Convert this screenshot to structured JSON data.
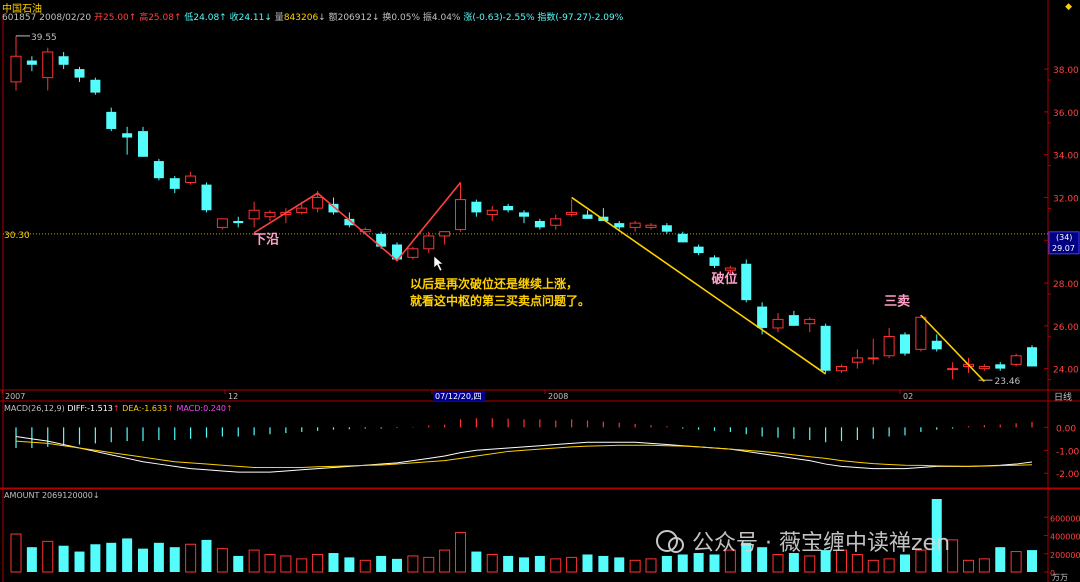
{
  "header": {
    "title": "中国石油",
    "code": "601857",
    "date": "2008/02/20",
    "open_label": "开",
    "open": "25.00",
    "high_label": "高",
    "high": "25.08",
    "low_label": "低",
    "low": "24.08",
    "close_label": "收",
    "close": "24.11",
    "volume_label": "量",
    "volume": "843206",
    "amount_label": "额",
    "amount": "206912",
    "turnover_label": "换",
    "turnover": "0.05%",
    "amplitude_label": "振",
    "amplitude": "4.04%",
    "change_label": "涨",
    "change": "(-0.63)-2.55%",
    "index_label": "指数",
    "index": "(-97.27)-2.09%"
  },
  "price_axis": {
    "ticks": [
      "38.00",
      "36.00",
      "34.00",
      "32.00",
      "30.00",
      "28.00",
      "26.00",
      "24.00"
    ],
    "ref_left": "30.30",
    "tag_top": "(34)",
    "tag_bottom": "29.07",
    "max_label": "39.55",
    "min_label": "23.46"
  },
  "date_axis": {
    "labels": [
      "2007",
      "12",
      "07/12/20,四",
      "2008",
      "02"
    ],
    "period": "日线"
  },
  "annotations": {
    "lower_edge": "下沿",
    "break": "破位",
    "third_sell": "三卖",
    "note_line1": "以后是再次破位还是继续上涨，",
    "note_line2": "就看这中枢的第三买卖点问题了。"
  },
  "macd": {
    "label": "MACD(26,12,9)",
    "diff_label": "DIFF:",
    "diff": "-1.513",
    "dea_label": "DEA:",
    "dea": "-1.633",
    "macd_label": "MACD:",
    "macd_value": "0.240",
    "ticks": [
      "0.00",
      "-1.00",
      "-2.00"
    ]
  },
  "amount_panel": {
    "label": "AMOUNT",
    "value": "2069120000",
    "ticks": [
      "600000",
      "400000",
      "200000",
      "0"
    ],
    "unit": "万万"
  },
  "watermark": "公众号 · 薇宝缠中读禅zen",
  "colors": {
    "up": "#ff3232",
    "down": "#54fcfc",
    "axis": "#b00000",
    "diff_line": "#ffffff",
    "dea_line": "#ffd000",
    "annotation_red": "#ff4040",
    "annotation_yellow": "#ffd000",
    "label_pink": "#ffa0c8"
  },
  "chart_data": {
    "type": "candlestick",
    "ylim": [
      23.0,
      40.2
    ],
    "candles": [
      {
        "o": 37.4,
        "h": 39.55,
        "l": 37.0,
        "c": 38.6
      },
      {
        "o": 38.4,
        "h": 38.6,
        "l": 37.9,
        "c": 38.2
      },
      {
        "o": 37.6,
        "h": 39.0,
        "l": 37.0,
        "c": 38.8
      },
      {
        "o": 38.6,
        "h": 38.8,
        "l": 38.0,
        "c": 38.2
      },
      {
        "o": 38.0,
        "h": 38.1,
        "l": 37.4,
        "c": 37.6
      },
      {
        "o": 37.5,
        "h": 37.6,
        "l": 36.8,
        "c": 36.9
      },
      {
        "o": 36.0,
        "h": 36.2,
        "l": 35.1,
        "c": 35.2
      },
      {
        "o": 35.0,
        "h": 35.3,
        "l": 34.0,
        "c": 34.8
      },
      {
        "o": 35.1,
        "h": 35.3,
        "l": 33.9,
        "c": 33.9
      },
      {
        "o": 33.7,
        "h": 33.8,
        "l": 32.8,
        "c": 32.9
      },
      {
        "o": 32.9,
        "h": 33.0,
        "l": 32.2,
        "c": 32.4
      },
      {
        "o": 32.7,
        "h": 33.2,
        "l": 32.6,
        "c": 33.0
      },
      {
        "o": 32.6,
        "h": 32.7,
        "l": 31.3,
        "c": 31.4
      },
      {
        "o": 30.6,
        "h": 30.9,
        "l": 30.5,
        "c": 31.0
      },
      {
        "o": 30.9,
        "h": 31.1,
        "l": 30.6,
        "c": 30.8
      },
      {
        "o": 31.0,
        "h": 31.8,
        "l": 30.6,
        "c": 31.4
      },
      {
        "o": 31.1,
        "h": 31.4,
        "l": 30.9,
        "c": 31.3
      },
      {
        "o": 31.2,
        "h": 31.5,
        "l": 30.8,
        "c": 31.3
      },
      {
        "o": 31.3,
        "h": 31.8,
        "l": 31.2,
        "c": 31.5
      },
      {
        "o": 31.5,
        "h": 32.3,
        "l": 31.3,
        "c": 32.0
      },
      {
        "o": 31.7,
        "h": 32.0,
        "l": 31.2,
        "c": 31.3
      },
      {
        "o": 31.0,
        "h": 31.3,
        "l": 30.6,
        "c": 30.7
      },
      {
        "o": 30.4,
        "h": 30.6,
        "l": 30.3,
        "c": 30.5
      },
      {
        "o": 30.3,
        "h": 30.4,
        "l": 29.6,
        "c": 29.7
      },
      {
        "o": 29.8,
        "h": 29.9,
        "l": 29.0,
        "c": 29.1
      },
      {
        "o": 29.2,
        "h": 29.7,
        "l": 29.1,
        "c": 29.6
      },
      {
        "o": 29.6,
        "h": 30.4,
        "l": 29.4,
        "c": 30.2
      },
      {
        "o": 30.2,
        "h": 30.4,
        "l": 29.8,
        "c": 30.4
      },
      {
        "o": 30.5,
        "h": 32.7,
        "l": 30.4,
        "c": 31.9
      },
      {
        "o": 31.8,
        "h": 31.9,
        "l": 31.1,
        "c": 31.3
      },
      {
        "o": 31.2,
        "h": 31.6,
        "l": 30.9,
        "c": 31.4
      },
      {
        "o": 31.6,
        "h": 31.7,
        "l": 31.3,
        "c": 31.4
      },
      {
        "o": 31.3,
        "h": 31.4,
        "l": 30.8,
        "c": 31.1
      },
      {
        "o": 30.9,
        "h": 31.0,
        "l": 30.5,
        "c": 30.6
      },
      {
        "o": 30.7,
        "h": 31.2,
        "l": 30.5,
        "c": 31.0
      },
      {
        "o": 31.2,
        "h": 31.9,
        "l": 31.1,
        "c": 31.3
      },
      {
        "o": 31.2,
        "h": 31.4,
        "l": 31.0,
        "c": 31.0
      },
      {
        "o": 31.1,
        "h": 31.5,
        "l": 30.9,
        "c": 30.9
      },
      {
        "o": 30.8,
        "h": 30.9,
        "l": 30.5,
        "c": 30.6
      },
      {
        "o": 30.6,
        "h": 30.9,
        "l": 30.4,
        "c": 30.8
      },
      {
        "o": 30.6,
        "h": 30.8,
        "l": 30.5,
        "c": 30.7
      },
      {
        "o": 30.7,
        "h": 30.8,
        "l": 30.3,
        "c": 30.4
      },
      {
        "o": 30.3,
        "h": 30.4,
        "l": 29.9,
        "c": 29.9
      },
      {
        "o": 29.7,
        "h": 29.8,
        "l": 29.3,
        "c": 29.4
      },
      {
        "o": 29.2,
        "h": 29.3,
        "l": 28.7,
        "c": 28.8
      },
      {
        "o": 28.6,
        "h": 28.8,
        "l": 28.4,
        "c": 28.7
      },
      {
        "o": 28.9,
        "h": 29.1,
        "l": 27.1,
        "c": 27.2
      },
      {
        "o": 26.9,
        "h": 27.1,
        "l": 25.6,
        "c": 25.9
      },
      {
        "o": 25.9,
        "h": 26.6,
        "l": 25.7,
        "c": 26.3
      },
      {
        "o": 26.5,
        "h": 26.7,
        "l": 26.0,
        "c": 26.0
      },
      {
        "o": 26.1,
        "h": 26.4,
        "l": 25.7,
        "c": 26.3
      },
      {
        "o": 26.0,
        "h": 26.1,
        "l": 23.8,
        "c": 23.9
      },
      {
        "o": 23.9,
        "h": 24.2,
        "l": 23.8,
        "c": 24.1
      },
      {
        "o": 24.3,
        "h": 24.9,
        "l": 24.0,
        "c": 24.5
      },
      {
        "o": 24.5,
        "h": 25.4,
        "l": 24.2,
        "c": 24.5
      },
      {
        "o": 24.6,
        "h": 25.9,
        "l": 24.5,
        "c": 25.5
      },
      {
        "o": 25.6,
        "h": 25.7,
        "l": 24.6,
        "c": 24.7
      },
      {
        "o": 24.9,
        "h": 26.5,
        "l": 24.8,
        "c": 26.4
      },
      {
        "o": 25.3,
        "h": 25.6,
        "l": 24.8,
        "c": 24.9
      },
      {
        "o": 24.0,
        "h": 24.3,
        "l": 23.5,
        "c": 24.0
      },
      {
        "o": 24.1,
        "h": 24.5,
        "l": 23.8,
        "c": 24.2
      },
      {
        "o": 24.0,
        "h": 24.2,
        "l": 23.9,
        "c": 24.1
      },
      {
        "o": 24.2,
        "h": 24.3,
        "l": 23.9,
        "c": 24.0
      },
      {
        "o": 24.2,
        "h": 24.7,
        "l": 24.1,
        "c": 24.6
      },
      {
        "o": 25.0,
        "h": 25.1,
        "l": 24.1,
        "c": 24.1
      }
    ],
    "macd_hist": [
      -0.9,
      -0.9,
      -0.85,
      -0.8,
      -0.75,
      -0.7,
      -0.65,
      -0.6,
      -0.6,
      -0.55,
      -0.55,
      -0.5,
      -0.45,
      -0.4,
      -0.4,
      -0.35,
      -0.3,
      -0.25,
      -0.2,
      -0.15,
      -0.1,
      -0.08,
      -0.05,
      -0.05,
      -0.02,
      0.02,
      0.08,
      0.12,
      0.35,
      0.4,
      0.4,
      0.38,
      0.35,
      0.35,
      0.3,
      0.35,
      0.3,
      0.25,
      0.2,
      0.15,
      0.1,
      0.05,
      -0.05,
      -0.1,
      -0.15,
      -0.2,
      -0.3,
      -0.4,
      -0.45,
      -0.5,
      -0.55,
      -0.65,
      -0.6,
      -0.55,
      -0.5,
      -0.4,
      -0.35,
      -0.2,
      -0.1,
      -0.05,
      0.05,
      0.1,
      0.12,
      0.18,
      0.24
    ],
    "diff": [
      -0.4,
      -0.5,
      -0.6,
      -0.75,
      -0.9,
      -1.05,
      -1.2,
      -1.35,
      -1.5,
      -1.6,
      -1.7,
      -1.8,
      -1.85,
      -1.9,
      -1.95,
      -1.95,
      -1.95,
      -1.9,
      -1.85,
      -1.8,
      -1.75,
      -1.7,
      -1.65,
      -1.6,
      -1.55,
      -1.45,
      -1.35,
      -1.25,
      -1.1,
      -1.0,
      -0.95,
      -0.9,
      -0.85,
      -0.8,
      -0.75,
      -0.7,
      -0.65,
      -0.65,
      -0.65,
      -0.65,
      -0.7,
      -0.75,
      -0.8,
      -0.85,
      -0.9,
      -0.95,
      -1.05,
      -1.15,
      -1.25,
      -1.35,
      -1.45,
      -1.6,
      -1.7,
      -1.75,
      -1.8,
      -1.8,
      -1.8,
      -1.75,
      -1.7,
      -1.7,
      -1.7,
      -1.68,
      -1.65,
      -1.6,
      -1.51
    ],
    "dea": [
      -0.6,
      -0.65,
      -0.7,
      -0.8,
      -0.9,
      -1.0,
      -1.1,
      -1.2,
      -1.3,
      -1.4,
      -1.5,
      -1.55,
      -1.6,
      -1.65,
      -1.7,
      -1.75,
      -1.75,
      -1.75,
      -1.75,
      -1.72,
      -1.7,
      -1.68,
      -1.66,
      -1.64,
      -1.6,
      -1.55,
      -1.5,
      -1.45,
      -1.35,
      -1.25,
      -1.15,
      -1.05,
      -1.0,
      -0.95,
      -0.9,
      -0.85,
      -0.82,
      -0.8,
      -0.78,
      -0.78,
      -0.78,
      -0.8,
      -0.82,
      -0.85,
      -0.9,
      -0.95,
      -1.0,
      -1.05,
      -1.12,
      -1.2,
      -1.28,
      -1.35,
      -1.45,
      -1.52,
      -1.58,
      -1.62,
      -1.65,
      -1.66,
      -1.68,
      -1.69,
      -1.7,
      -1.69,
      -1.67,
      -1.65,
      -1.63
    ],
    "macd_ylim": [
      -2.6,
      0.8
    ],
    "amount": [
      52,
      34,
      42,
      36,
      28,
      38,
      40,
      46,
      32,
      40,
      34,
      38,
      44,
      32,
      22,
      30,
      24,
      22,
      18,
      24,
      26,
      20,
      16,
      22,
      18,
      22,
      20,
      30,
      54,
      28,
      24,
      22,
      20,
      22,
      18,
      20,
      24,
      22,
      20,
      16,
      18,
      22,
      24,
      26,
      24,
      30,
      40,
      34,
      24,
      26,
      22,
      30,
      30,
      24,
      16,
      18,
      24,
      30,
      100,
      44,
      16,
      18,
      34,
      28,
      30
    ],
    "amount_max": 800000,
    "amount_ylim_units": [
      0,
      800000
    ]
  }
}
